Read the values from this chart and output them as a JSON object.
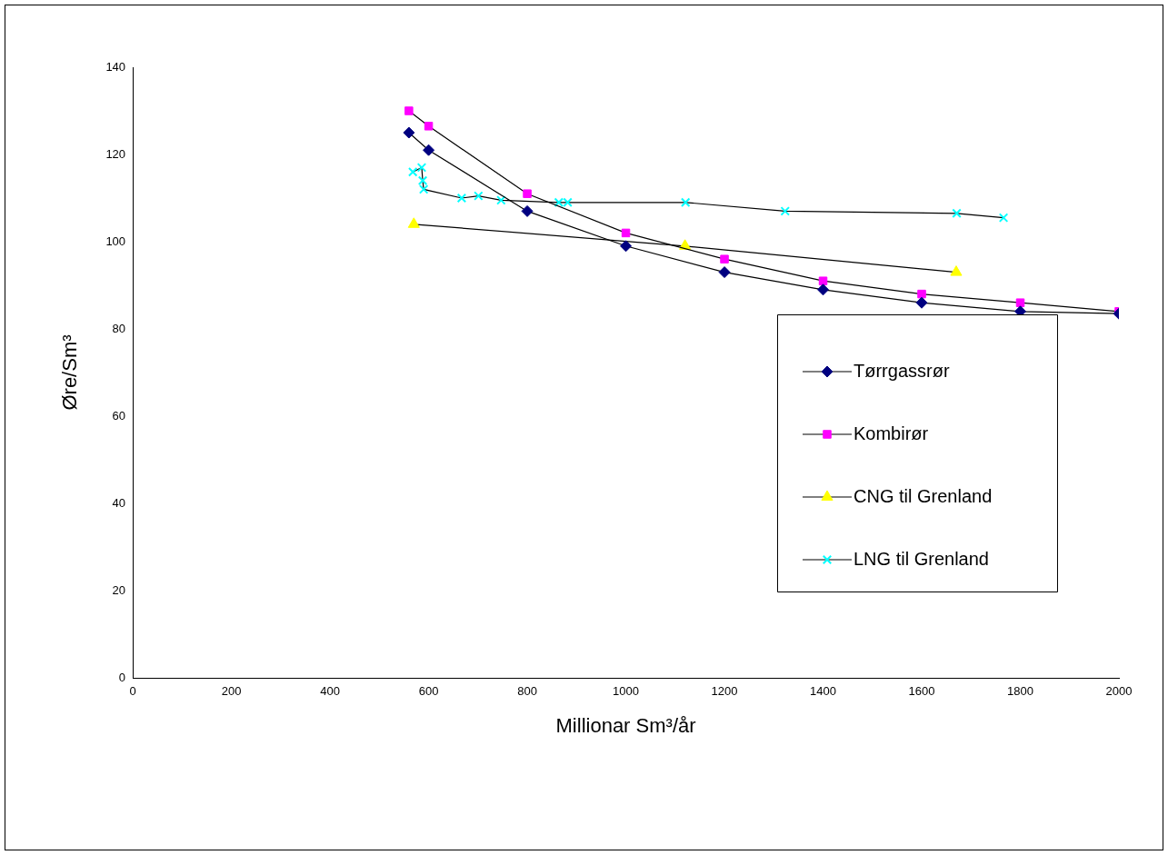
{
  "chart_data": {
    "type": "line",
    "xlabel": "Millionar Sm³/år",
    "ylabel": "Øre/Sm³",
    "xlim": [
      0,
      2000
    ],
    "xticks": [
      0,
      200,
      400,
      600,
      800,
      1000,
      1200,
      1400,
      1600,
      1800,
      2000
    ],
    "ylim": [
      0,
      140
    ],
    "yticks": [
      0,
      20,
      40,
      60,
      80,
      100,
      120,
      140
    ],
    "grid": false,
    "legend": "bottom right",
    "line_style": "solid",
    "series": [
      {
        "name": "Tørrgassrør",
        "color": "#000080",
        "marker": "diamond",
        "x": [
          560,
          600,
          800,
          1000,
          1200,
          1400,
          1600,
          1800,
          2000
        ],
        "values": [
          125,
          121,
          107,
          99,
          93,
          89,
          86,
          84,
          83.5
        ]
      },
      {
        "name": "Kombirør",
        "color": "#ff00ff",
        "marker": "square",
        "x": [
          560,
          600,
          800,
          1000,
          1200,
          1400,
          1600,
          1800,
          2000
        ],
        "values": [
          130,
          126.5,
          111,
          102,
          96,
          91,
          88,
          86,
          84
        ]
      },
      {
        "name": "CNG til Grenland",
        "color": "#ffff00",
        "marker": "triangle",
        "x": [
          570,
          1120,
          1670
        ],
        "values": [
          104,
          99,
          93
        ]
      },
      {
        "name": "LNG til Grenland",
        "color": "#00ffff",
        "marker": "cross",
        "x": [
          568,
          586,
          588,
          590,
          667,
          701,
          747,
          864,
          882,
          1121,
          1323,
          1671,
          1766
        ],
        "values": [
          116,
          117,
          114,
          112,
          110,
          110.5,
          109.5,
          109,
          109,
          109,
          107,
          106.5,
          105.5
        ]
      }
    ]
  }
}
